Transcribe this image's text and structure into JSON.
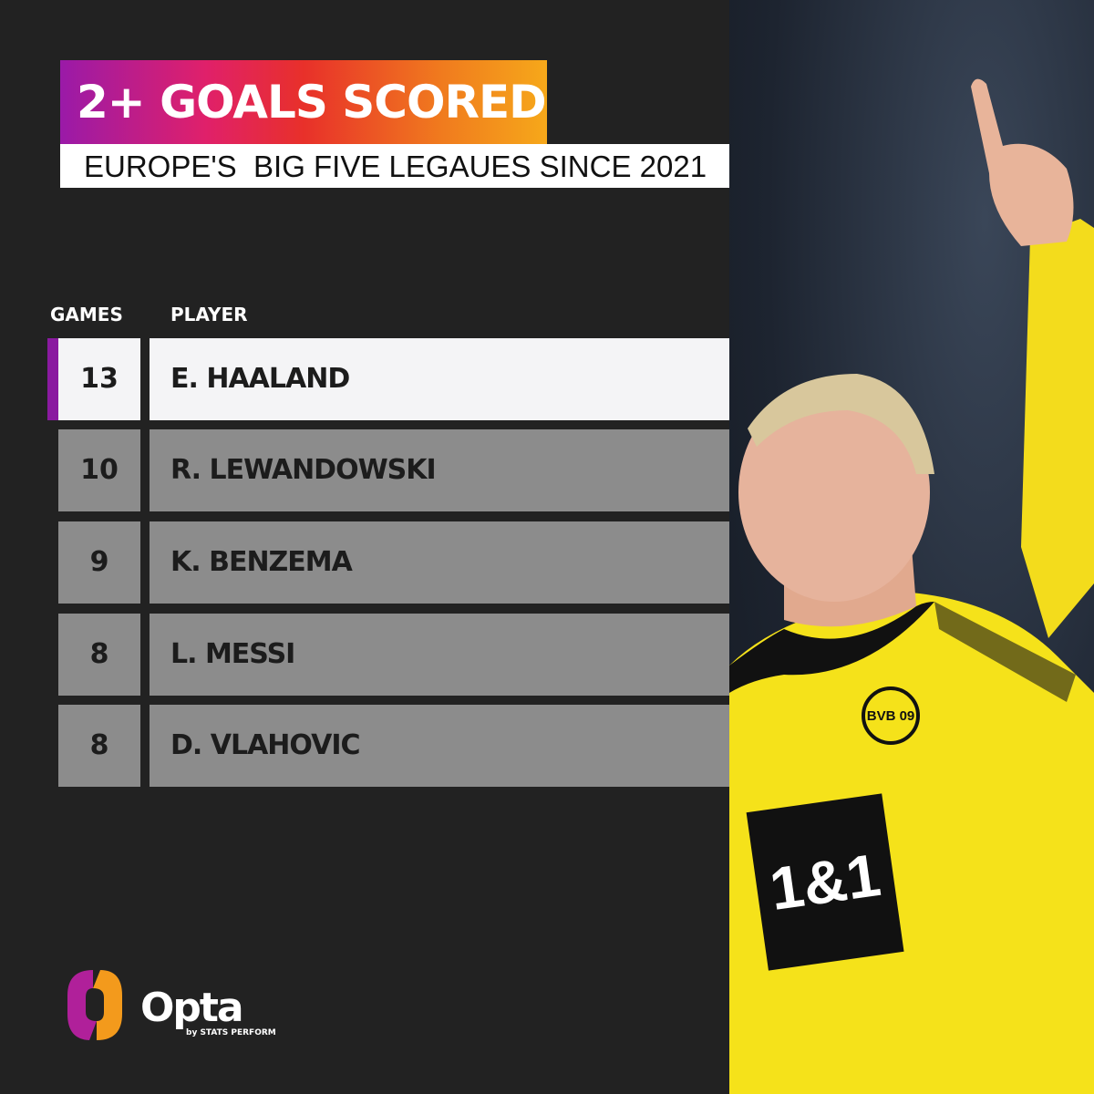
{
  "header": {
    "title": "2+ GOALS SCORED",
    "subtitle": "EUROPE'S  BIG FIVE LEGAUES SINCE 2021"
  },
  "table": {
    "columns": [
      "GAMES",
      "PLAYER"
    ],
    "rows": [
      {
        "games": "13",
        "player": "E. HAALAND"
      },
      {
        "games": "10",
        "player": "R. LEWANDOWSKI"
      },
      {
        "games": "9",
        "player": "K. BENZEMA"
      },
      {
        "games": "8",
        "player": "L. MESSI"
      },
      {
        "games": "8",
        "player": "D. VLAHOVIC"
      }
    ]
  },
  "branding": {
    "logo": "Opta",
    "tagline": "by STATS PERFORM",
    "sponsor": "1&1",
    "club": "BVB 09"
  },
  "colors": {
    "background": "#222222",
    "highlight_row": "#f4f4f6",
    "row": "#8c8c8c",
    "accent": "#8a1aa0",
    "gradient": [
      "#9a1aa8",
      "#e8302a",
      "#f6a81a"
    ],
    "kit": "#f5e21a"
  }
}
